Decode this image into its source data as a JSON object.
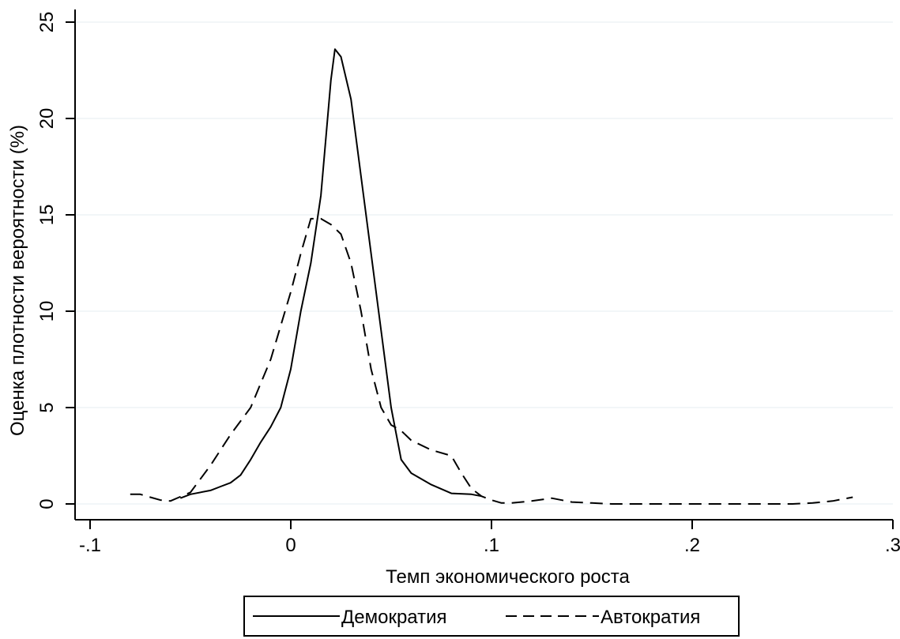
{
  "chart_data": {
    "type": "line",
    "title": "",
    "xlabel": "Темп экономического роста",
    "ylabel": "Оценка плотности вероятности (%)",
    "xlim": [
      -0.1,
      0.3
    ],
    "ylim": [
      0,
      25
    ],
    "x_ticks": [
      {
        "value": -0.1,
        "label": "-.1"
      },
      {
        "value": 0.0,
        "label": "0"
      },
      {
        "value": 0.1,
        "label": ".1"
      },
      {
        "value": 0.2,
        "label": ".2"
      },
      {
        "value": 0.3,
        "label": ".3"
      }
    ],
    "y_ticks": [
      {
        "value": 0,
        "label": "0"
      },
      {
        "value": 5,
        "label": "5"
      },
      {
        "value": 10,
        "label": "10"
      },
      {
        "value": 15,
        "label": "15"
      },
      {
        "value": 20,
        "label": "20"
      },
      {
        "value": 25,
        "label": "25"
      }
    ],
    "grid": "horizontal",
    "legend_position": "bottom",
    "series": [
      {
        "name": "Демократия",
        "style": "solid",
        "color": "#000000",
        "points": [
          [
            -0.055,
            0.3
          ],
          [
            -0.05,
            0.5
          ],
          [
            -0.04,
            0.7
          ],
          [
            -0.035,
            0.9
          ],
          [
            -0.03,
            1.1
          ],
          [
            -0.025,
            1.5
          ],
          [
            -0.02,
            2.3
          ],
          [
            -0.015,
            3.2
          ],
          [
            -0.01,
            4.0
          ],
          [
            -0.005,
            5.0
          ],
          [
            0.0,
            7.0
          ],
          [
            0.005,
            10.0
          ],
          [
            0.01,
            12.5
          ],
          [
            0.015,
            16.0
          ],
          [
            0.02,
            22.0
          ],
          [
            0.022,
            23.6
          ],
          [
            0.025,
            23.2
          ],
          [
            0.03,
            21.0
          ],
          [
            0.035,
            17.0
          ],
          [
            0.04,
            13.0
          ],
          [
            0.045,
            9.0
          ],
          [
            0.05,
            5.0
          ],
          [
            0.055,
            2.3
          ],
          [
            0.06,
            1.6
          ],
          [
            0.07,
            1.0
          ],
          [
            0.08,
            0.55
          ],
          [
            0.09,
            0.5
          ],
          [
            0.095,
            0.4
          ]
        ]
      },
      {
        "name": "Автократия",
        "style": "dashed",
        "color": "#000000",
        "points": [
          [
            -0.08,
            0.5
          ],
          [
            -0.075,
            0.5
          ],
          [
            -0.07,
            0.35
          ],
          [
            -0.065,
            0.2
          ],
          [
            -0.06,
            0.15
          ],
          [
            -0.05,
            0.6
          ],
          [
            -0.04,
            2.0
          ],
          [
            -0.03,
            3.6
          ],
          [
            -0.02,
            5.0
          ],
          [
            -0.01,
            7.5
          ],
          [
            0.0,
            11.0
          ],
          [
            0.005,
            13.0
          ],
          [
            0.01,
            14.8
          ],
          [
            0.015,
            14.8
          ],
          [
            0.02,
            14.5
          ],
          [
            0.025,
            14.0
          ],
          [
            0.03,
            12.5
          ],
          [
            0.035,
            10.0
          ],
          [
            0.04,
            7.0
          ],
          [
            0.045,
            5.0
          ],
          [
            0.05,
            4.1
          ],
          [
            0.055,
            3.8
          ],
          [
            0.06,
            3.3
          ],
          [
            0.07,
            2.8
          ],
          [
            0.08,
            2.5
          ],
          [
            0.085,
            1.6
          ],
          [
            0.09,
            0.8
          ],
          [
            0.095,
            0.4
          ],
          [
            0.1,
            0.2
          ],
          [
            0.105,
            0.05
          ],
          [
            0.11,
            0.05
          ],
          [
            0.12,
            0.15
          ],
          [
            0.13,
            0.3
          ],
          [
            0.14,
            0.1
          ],
          [
            0.15,
            0.05
          ],
          [
            0.16,
            0.0
          ],
          [
            0.2,
            0.0
          ],
          [
            0.25,
            0.0
          ],
          [
            0.26,
            0.05
          ],
          [
            0.27,
            0.15
          ],
          [
            0.28,
            0.35
          ]
        ]
      }
    ]
  }
}
